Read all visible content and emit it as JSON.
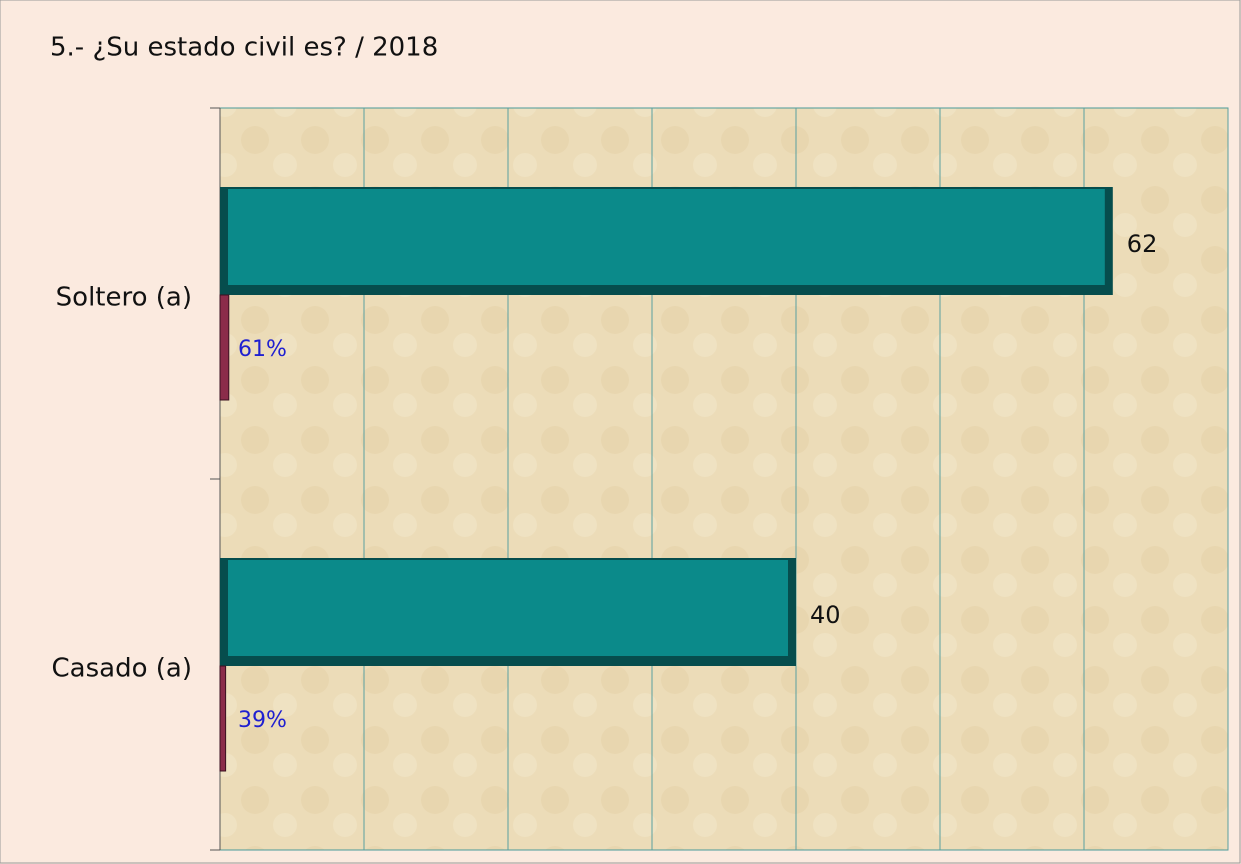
{
  "chart_data": {
    "type": "barh",
    "title": "5.- ¿Su estado civil es?  /  2018",
    "categories": [
      "Soltero (a)",
      "Casado (a)"
    ],
    "series": [
      {
        "color": "#0b8a8a",
        "values": [
          62,
          40
        ]
      },
      {
        "color": "#8b2c4a",
        "values": [
          0.61,
          0.39
        ],
        "value_labels": [
          "61%",
          "39%"
        ]
      }
    ],
    "xlim": [
      0,
      70
    ],
    "xticks": [
      0,
      10,
      20,
      30,
      40,
      50,
      60,
      70
    ],
    "grid": true
  }
}
